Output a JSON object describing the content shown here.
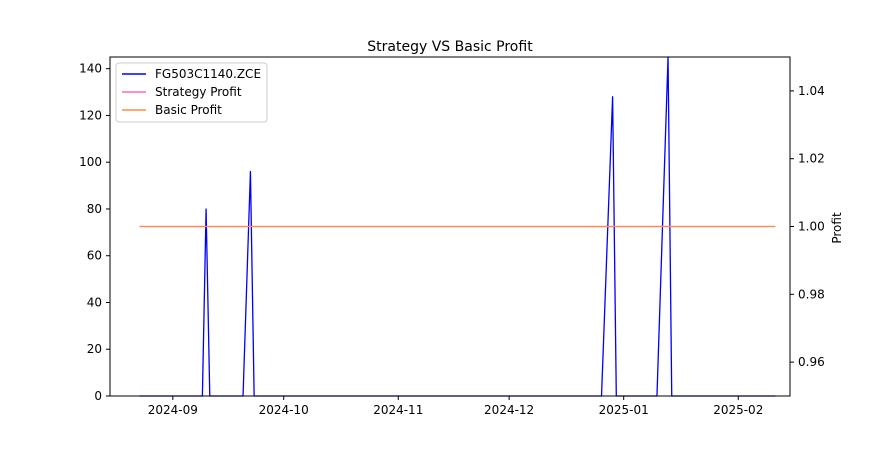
{
  "chart_data": {
    "type": "line",
    "title": "Strategy VS Basic Profit",
    "xlabel": "",
    "ylabel_left": "",
    "ylabel_right": "Profit",
    "xlim": [
      "2024-08-15",
      "2025-02-15"
    ],
    "ylim_left": [
      0,
      145
    ],
    "ylim_right": [
      0.95,
      1.05
    ],
    "x_ticks": [
      "2024-09",
      "2024-10",
      "2024-11",
      "2024-12",
      "2025-01",
      "2025-02"
    ],
    "x_tick_dates": [
      "2024-09-01",
      "2024-10-01",
      "2024-11-01",
      "2024-12-01",
      "2025-01-01",
      "2025-02-01"
    ],
    "y_ticks_left": [
      0,
      20,
      40,
      60,
      80,
      100,
      120,
      140
    ],
    "y_ticks_right": [
      0.96,
      0.98,
      1.0,
      1.02,
      1.04
    ],
    "y_tick_labels_right": [
      "0.96",
      "0.98",
      "1.00",
      "1.02",
      "1.04"
    ],
    "grid": false,
    "legend_position": "top-left",
    "series": [
      {
        "name": "FG503C1140.ZCE",
        "axis": "left",
        "color": "#0000ff",
        "x": [
          "2024-08-23",
          "2024-09-09",
          "2024-09-10",
          "2024-09-11",
          "2024-09-20",
          "2024-09-22",
          "2024-09-23",
          "2024-12-26",
          "2024-12-29",
          "2024-12-30",
          "2025-01-10",
          "2025-01-13",
          "2025-01-14",
          "2025-02-11"
        ],
        "values": [
          0,
          0,
          80,
          0,
          0,
          96,
          0,
          0,
          128,
          0,
          0,
          145,
          0,
          0
        ]
      },
      {
        "name": "Strategy Profit",
        "axis": "right",
        "color": "#ff69b4",
        "x": [
          "2024-08-23",
          "2025-02-11"
        ],
        "values": [
          1.0,
          1.0
        ]
      },
      {
        "name": "Basic Profit",
        "axis": "right",
        "color": "#ff8c47",
        "x": [
          "2024-08-23",
          "2025-02-11"
        ],
        "values": [
          1.0,
          1.0
        ]
      }
    ]
  }
}
